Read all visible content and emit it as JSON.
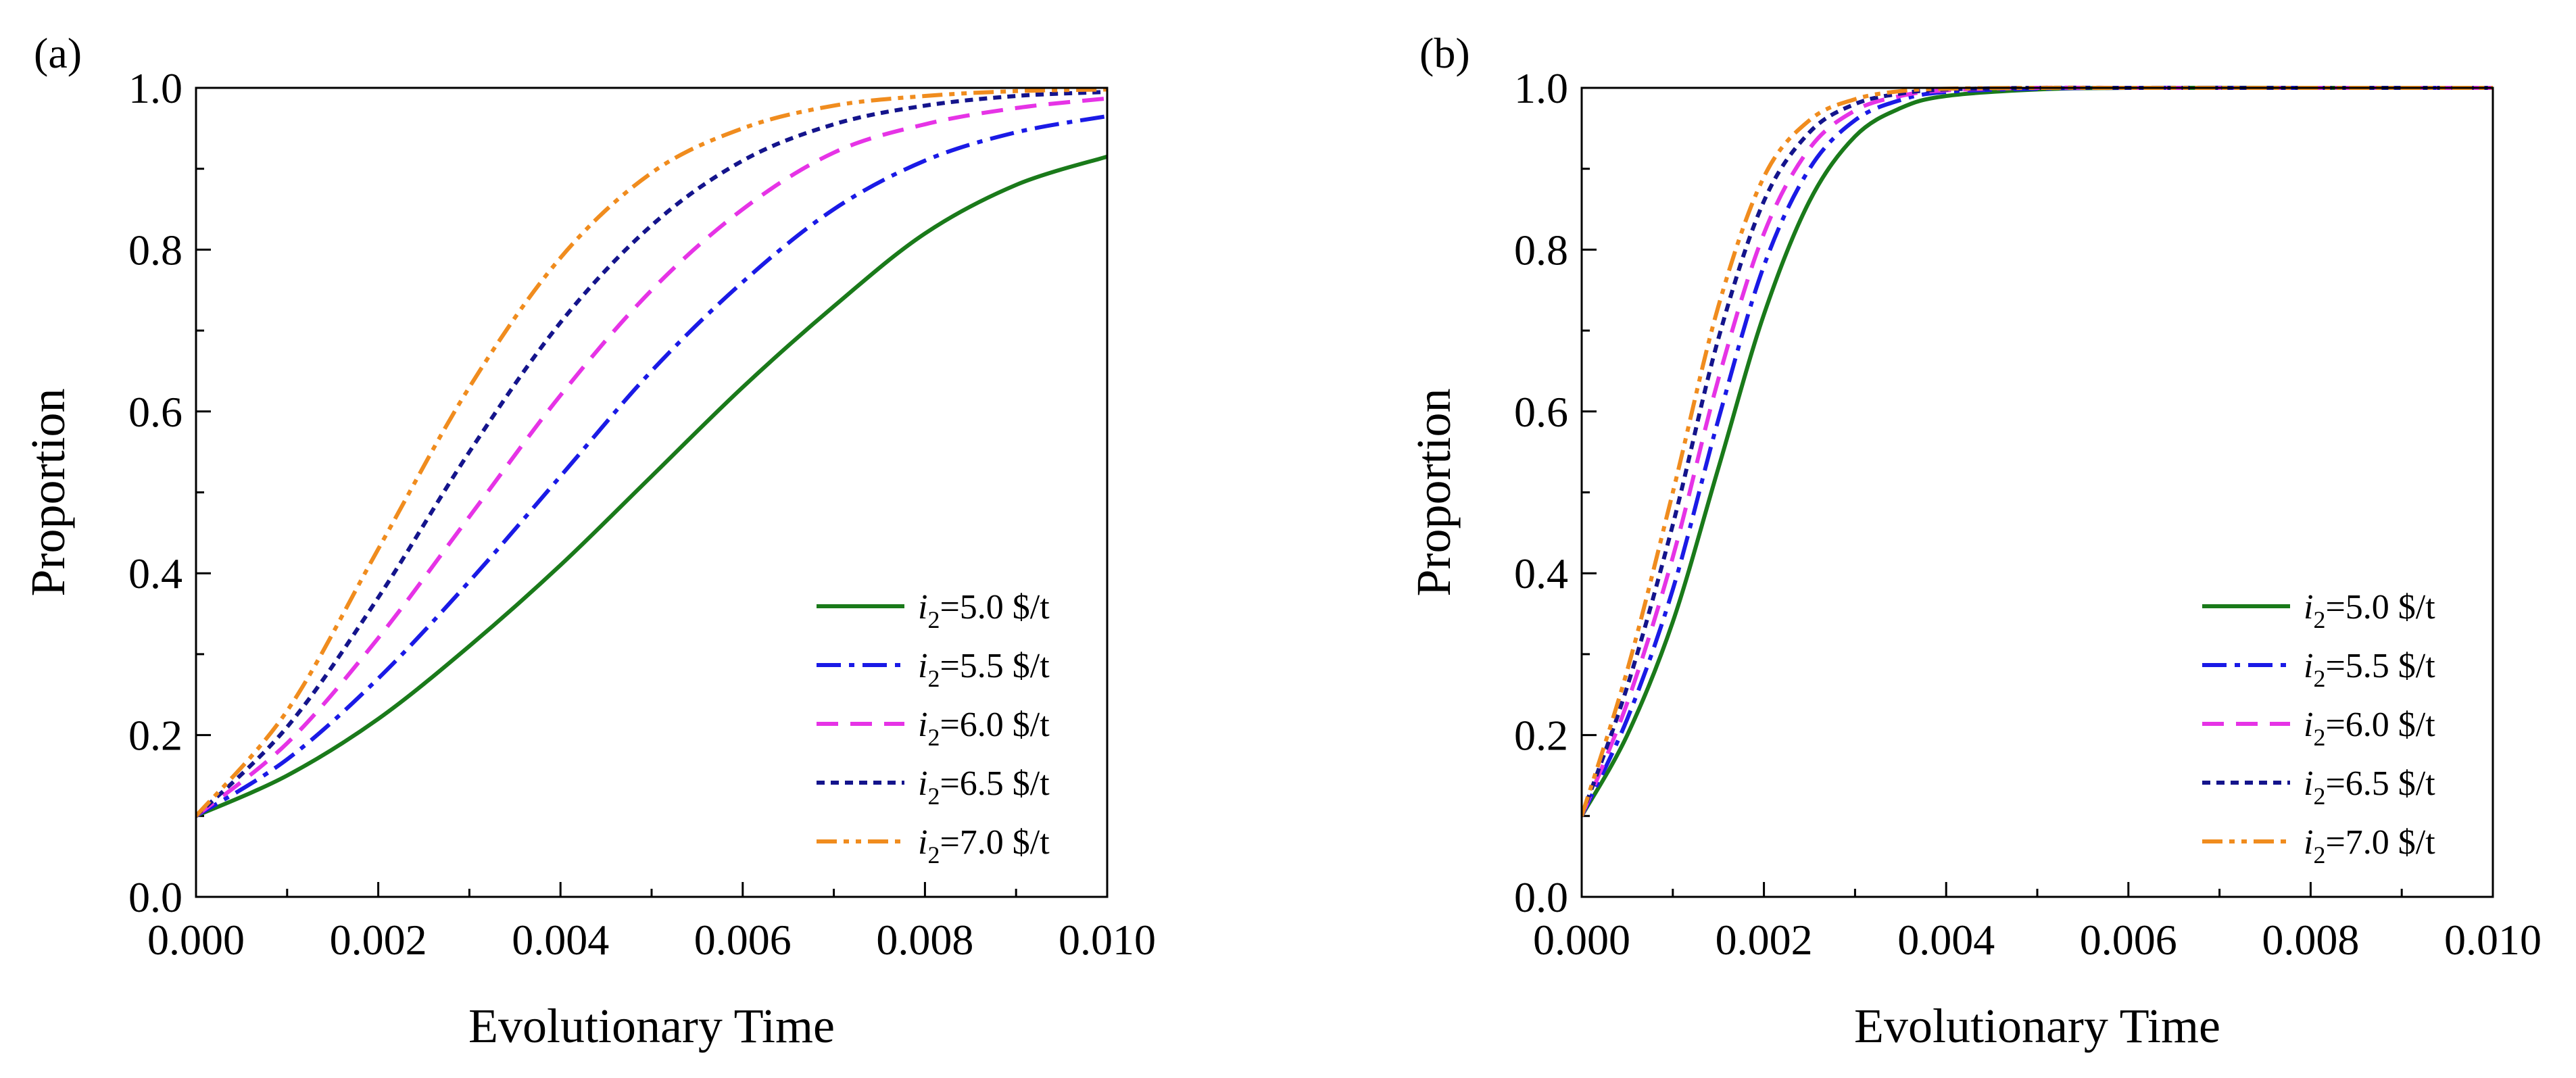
{
  "chart_data": [
    {
      "type": "line",
      "panel_label": "(a)",
      "title": "",
      "xlabel": "Evolutionary Time",
      "ylabel": "Proportion",
      "xlim": [
        0,
        0.01
      ],
      "ylim": [
        0,
        1.0
      ],
      "x_ticks": [
        "0.000",
        "0.002",
        "0.004",
        "0.006",
        "0.008",
        "0.010"
      ],
      "y_ticks": [
        "0.0",
        "0.2",
        "0.4",
        "0.6",
        "0.8",
        "1.0"
      ],
      "legend_position": "bottom-right",
      "x": [
        0.0,
        0.001,
        0.002,
        0.003,
        0.004,
        0.005,
        0.006,
        0.007,
        0.008,
        0.009,
        0.01
      ],
      "series": [
        {
          "name": "i2=5.0 $/t",
          "label_var": "i",
          "label_sub": "2",
          "label_rest": "=5.0  $/t",
          "color": "#1a7a1a",
          "dash": "solid",
          "values": [
            0.1,
            0.15,
            0.22,
            0.31,
            0.41,
            0.52,
            0.63,
            0.73,
            0.82,
            0.88,
            0.915
          ]
        },
        {
          "name": "i2=5.5 $/t",
          "label_var": "i",
          "label_sub": "2",
          "label_rest": "=5.5  $/t",
          "color": "#1a1ae6",
          "dash": "dashdot",
          "values": [
            0.1,
            0.17,
            0.27,
            0.39,
            0.52,
            0.65,
            0.76,
            0.85,
            0.91,
            0.945,
            0.965
          ]
        },
        {
          "name": "i2=6.0 $/t",
          "label_var": "i",
          "label_sub": "2",
          "label_rest": "=6.0  $/t",
          "color": "#e633e6",
          "dash": "dash",
          "values": [
            0.1,
            0.19,
            0.32,
            0.47,
            0.62,
            0.75,
            0.85,
            0.92,
            0.955,
            0.975,
            0.987
          ]
        },
        {
          "name": "i2=6.5 $/t",
          "label_var": "i",
          "label_sub": "2",
          "label_rest": "=6.5  $/t",
          "color": "#14148c",
          "dash": "dot",
          "values": [
            0.1,
            0.21,
            0.37,
            0.55,
            0.71,
            0.83,
            0.91,
            0.955,
            0.978,
            0.99,
            0.995
          ]
        },
        {
          "name": "i2=7.0 $/t",
          "label_var": "i",
          "label_sub": "2",
          "label_rest": "=7.0  $/t",
          "color": "#f08c1e",
          "dash": "dashdotdot",
          "values": [
            0.1,
            0.23,
            0.43,
            0.63,
            0.79,
            0.895,
            0.95,
            0.978,
            0.99,
            0.996,
            0.998
          ]
        }
      ]
    },
    {
      "type": "line",
      "panel_label": "(b)",
      "title": "",
      "xlabel": "Evolutionary Time",
      "ylabel": "Proportion",
      "xlim": [
        0,
        0.01
      ],
      "ylim": [
        0,
        1.0
      ],
      "x_ticks": [
        "0.000",
        "0.002",
        "0.004",
        "0.006",
        "0.008",
        "0.010"
      ],
      "y_ticks": [
        "0.0",
        "0.2",
        "0.4",
        "0.6",
        "0.8",
        "1.0"
      ],
      "legend_position": "bottom-right",
      "x": [
        0.0,
        0.0005,
        0.001,
        0.0015,
        0.002,
        0.0025,
        0.003,
        0.0035,
        0.004,
        0.005,
        0.006,
        0.008,
        0.01
      ],
      "series": [
        {
          "name": "i2=5.0 $/t",
          "label_var": "i",
          "label_sub": "2",
          "label_rest": "=5.0  $/t",
          "color": "#1a7a1a",
          "dash": "solid",
          "values": [
            0.1,
            0.2,
            0.34,
            0.53,
            0.72,
            0.86,
            0.94,
            0.975,
            0.99,
            0.998,
            1.0,
            1.0,
            1.0
          ]
        },
        {
          "name": "i2=5.5 $/t",
          "label_var": "i",
          "label_sub": "2",
          "label_rest": "=5.5  $/t",
          "color": "#1a1ae6",
          "dash": "dashdot",
          "values": [
            0.1,
            0.22,
            0.38,
            0.59,
            0.78,
            0.9,
            0.96,
            0.985,
            0.995,
            0.999,
            1.0,
            1.0,
            1.0
          ]
        },
        {
          "name": "i2=6.0 $/t",
          "label_var": "i",
          "label_sub": "2",
          "label_rest": "=6.0  $/t",
          "color": "#e633e6",
          "dash": "dash",
          "values": [
            0.1,
            0.24,
            0.42,
            0.64,
            0.82,
            0.925,
            0.972,
            0.99,
            0.997,
            1.0,
            1.0,
            1.0,
            1.0
          ]
        },
        {
          "name": "i2=6.5 $/t",
          "label_var": "i",
          "label_sub": "2",
          "label_rest": "=6.5  $/t",
          "color": "#14148c",
          "dash": "dot",
          "values": [
            0.1,
            0.26,
            0.46,
            0.69,
            0.86,
            0.945,
            0.98,
            0.993,
            0.998,
            1.0,
            1.0,
            1.0,
            1.0
          ]
        },
        {
          "name": "i2=7.0 $/t",
          "label_var": "i",
          "label_sub": "2",
          "label_rest": "=7.0  $/t",
          "color": "#f08c1e",
          "dash": "dashdotdot",
          "values": [
            0.1,
            0.28,
            0.5,
            0.73,
            0.89,
            0.96,
            0.986,
            0.996,
            0.999,
            1.0,
            1.0,
            1.0,
            1.0
          ]
        }
      ]
    }
  ]
}
